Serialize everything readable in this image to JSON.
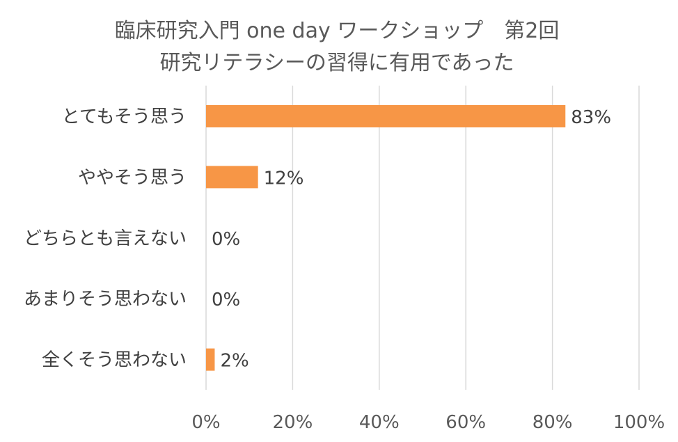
{
  "chart_data": {
    "type": "bar",
    "orientation": "horizontal",
    "title_lines": [
      "臨床研究入門 one day ワークショップ　第2回",
      "研究リテラシーの習得に有用であった"
    ],
    "categories": [
      "とてもそう思う",
      "ややそう思う",
      "どちらとも言えない",
      "あまりそう思わない",
      "全くそう思わない"
    ],
    "values": [
      83,
      12,
      0,
      0,
      2
    ],
    "value_labels": [
      "83%",
      "12%",
      "0%",
      "0%",
      "2%"
    ],
    "xlim": [
      0,
      100
    ],
    "x_ticks": [
      0,
      20,
      40,
      60,
      80,
      100
    ],
    "x_tick_labels": [
      "0%",
      "20%",
      "40%",
      "60%",
      "80%",
      "100%"
    ],
    "grid": true,
    "legend": "none",
    "bar_color": "#f79646"
  }
}
